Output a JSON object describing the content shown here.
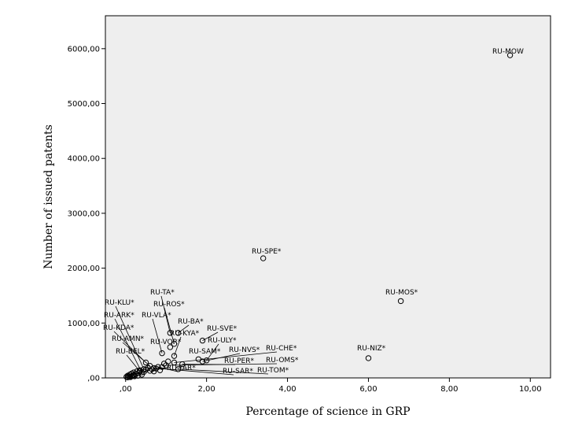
{
  "chart_data": {
    "type": "scatter",
    "xlabel": "Percentage of science in GRP",
    "ylabel": "Number of issued patents",
    "xlim": [
      -0.5,
      10.5
    ],
    "ylim": [
      0,
      6600
    ],
    "x_ticks": [
      {
        "value": 0,
        "label": ",00"
      },
      {
        "value": 2,
        "label": "2,00"
      },
      {
        "value": 4,
        "label": "4,00"
      },
      {
        "value": 6,
        "label": "6,00"
      },
      {
        "value": 8,
        "label": "8,00"
      },
      {
        "value": 10,
        "label": "10,00"
      }
    ],
    "y_ticks": [
      {
        "value": 0,
        "label": ",00"
      },
      {
        "value": 1000,
        "label": "1000,00"
      },
      {
        "value": 2000,
        "label": "2000,00"
      },
      {
        "value": 3000,
        "label": "3000,00"
      },
      {
        "value": 4000,
        "label": "4000,00"
      },
      {
        "value": 5000,
        "label": "5000,00"
      },
      {
        "value": 6000,
        "label": "6000,00"
      }
    ],
    "grid": false,
    "colors": {
      "plot_background": "#eeeeee",
      "point": "#000000"
    },
    "labeled_points": [
      {
        "label": "RU-MOW",
        "x": 9.5,
        "y": 5880
      },
      {
        "label": "RU-SPE*",
        "x": 3.4,
        "y": 2180
      },
      {
        "label": "RU-MOS*",
        "x": 6.8,
        "y": 1400
      },
      {
        "label": "RU-NIZ*",
        "x": 6.0,
        "y": 360
      },
      {
        "label": "RU-TA*",
        "x": 1.1,
        "y": 820
      },
      {
        "label": "RU-ROS*",
        "x": 1.2,
        "y": 620
      },
      {
        "label": "RU-KLU*",
        "x": 0.45,
        "y": 160
      },
      {
        "label": "RU-ARK*",
        "x": 0.4,
        "y": 100
      },
      {
        "label": "RU-VLA*",
        "x": 0.9,
        "y": 450
      },
      {
        "label": "RU-KDA*",
        "x": 0.5,
        "y": 280
      },
      {
        "label": "RU-BA*",
        "x": 1.3,
        "y": 820
      },
      {
        "label": "RU-AMN*",
        "x": 0.6,
        "y": 220
      },
      {
        "label": "RU-KYA*",
        "x": 1.2,
        "y": 400
      },
      {
        "label": "RU-SVE*",
        "x": 1.9,
        "y": 680
      },
      {
        "label": "RU-VOR*",
        "x": 1.1,
        "y": 560
      },
      {
        "label": "RU-ULY*",
        "x": 2.0,
        "y": 320
      },
      {
        "label": "RU-BEL*",
        "x": 0.35,
        "y": 120
      },
      {
        "label": "RU-SAM*",
        "x": 1.8,
        "y": 340
      },
      {
        "label": "RU-NVS*",
        "x": 1.9,
        "y": 300
      },
      {
        "label": "RU-CHE*",
        "x": 1.2,
        "y": 280
      },
      {
        "label": "RU-PER*",
        "x": 1.4,
        "y": 250
      },
      {
        "label": "RU-OMS*",
        "x": 1.0,
        "y": 230
      },
      {
        "label": "RU-YAR*",
        "x": 0.8,
        "y": 200
      },
      {
        "label": "RU-SAR*",
        "x": 0.7,
        "y": 180
      },
      {
        "label": "RU-TOM*",
        "x": 1.3,
        "y": 160
      }
    ],
    "unlabeled_points": [
      {
        "x": 0.02,
        "y": 20
      },
      {
        "x": 0.05,
        "y": 40
      },
      {
        "x": 0.08,
        "y": 30
      },
      {
        "x": 0.1,
        "y": 60
      },
      {
        "x": 0.12,
        "y": 15
      },
      {
        "x": 0.15,
        "y": 80
      },
      {
        "x": 0.18,
        "y": 50
      },
      {
        "x": 0.2,
        "y": 100
      },
      {
        "x": 0.22,
        "y": 30
      },
      {
        "x": 0.25,
        "y": 70
      },
      {
        "x": 0.28,
        "y": 120
      },
      {
        "x": 0.3,
        "y": 40
      },
      {
        "x": 0.32,
        "y": 90
      },
      {
        "x": 0.05,
        "y": 10
      },
      {
        "x": 0.1,
        "y": 25
      },
      {
        "x": 0.15,
        "y": 35
      },
      {
        "x": 0.2,
        "y": 55
      },
      {
        "x": 0.35,
        "y": 140
      },
      {
        "x": 0.4,
        "y": 60
      },
      {
        "x": 0.45,
        "y": 110
      },
      {
        "x": 0.5,
        "y": 150
      },
      {
        "x": 0.55,
        "y": 180
      },
      {
        "x": 0.6,
        "y": 130
      },
      {
        "x": 0.65,
        "y": 160
      },
      {
        "x": 0.7,
        "y": 120
      },
      {
        "x": 0.85,
        "y": 140
      },
      {
        "x": 0.75,
        "y": 170
      },
      {
        "x": 0.9,
        "y": 200
      },
      {
        "x": 0.95,
        "y": 260
      },
      {
        "x": 1.05,
        "y": 300
      }
    ]
  }
}
